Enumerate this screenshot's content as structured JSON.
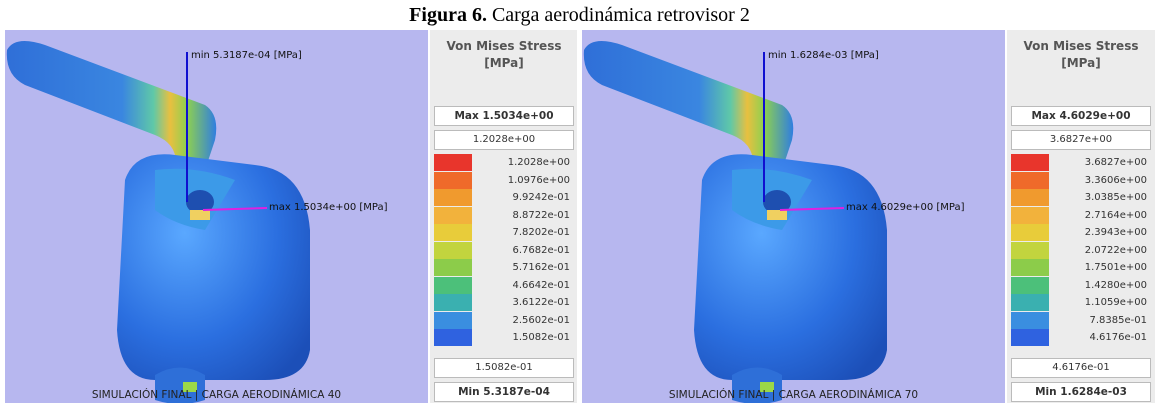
{
  "figure": {
    "label": "Figura 6.",
    "title": "Carga aerodinámica retrovisor 2"
  },
  "panels": [
    {
      "min_label": "min 5.3187e-04 [MPa]",
      "max_label": "max 1.5034e+00 [MPa]",
      "caption": "SIMULACIÓN FINAL | CARGA AERODINÁMICA 40",
      "legend": {
        "title": "Von Mises Stress",
        "unit": "[MPa]",
        "max": "Max 1.5034e+00",
        "top_box": "1.2028e+00",
        "levels": [
          "1.2028e+00",
          "1.0976e+00",
          "9.9242e-01",
          "8.8722e-01",
          "7.8202e-01",
          "6.7682e-01",
          "5.7162e-01",
          "4.6642e-01",
          "3.6122e-01",
          "2.5602e-01",
          "1.5082e-01"
        ],
        "bottom_box": "1.5082e-01",
        "min": "Min 5.3187e-04"
      }
    },
    {
      "min_label": "min 1.6284e-03 [MPa]",
      "max_label": "max 4.6029e+00 [MPa]",
      "caption": "SIMULACIÓN FINAL | CARGA AERODINÁMICA 70",
      "legend": {
        "title": "Von Mises Stress",
        "unit": "[MPa]",
        "max": "Max 4.6029e+00",
        "top_box": "3.6827e+00",
        "levels": [
          "3.6827e+00",
          "3.3606e+00",
          "3.0385e+00",
          "2.7164e+00",
          "2.3943e+00",
          "2.0722e+00",
          "1.7501e+00",
          "1.4280e+00",
          "1.1059e+00",
          "7.8385e-01",
          "4.6176e-01"
        ],
        "bottom_box": "4.6176e-01",
        "min": "Min 1.6284e-03"
      }
    }
  ]
}
